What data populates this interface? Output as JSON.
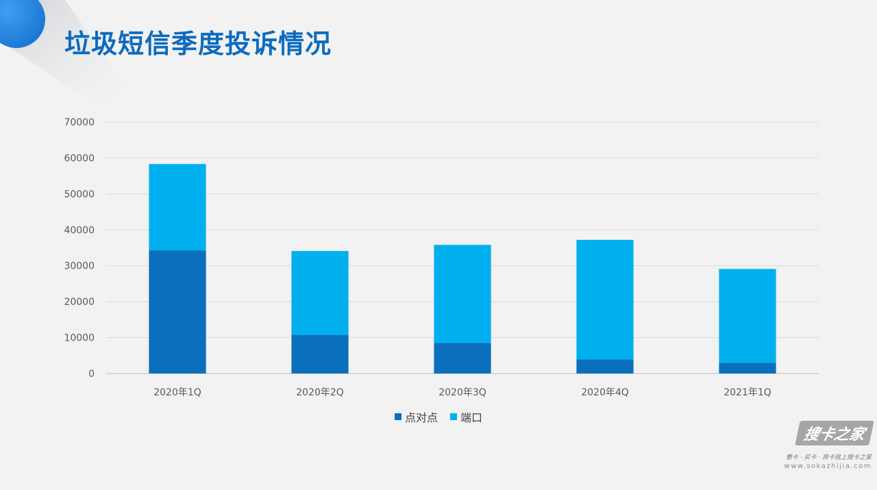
{
  "title": "垃圾短信季度投诉情况",
  "colors": {
    "background": "#f2f2f2",
    "title": "#0d6bbf",
    "point_to_point": "#0a6fbd",
    "port": "#00b0ee",
    "gridline": "#d9d9d9",
    "tick_text": "#595959",
    "deco_circle": "#1f86e0"
  },
  "chart_data": {
    "type": "bar",
    "stacked": true,
    "title": "",
    "xlabel": "",
    "ylabel": "",
    "categories": [
      "2020年1Q",
      "2020年2Q",
      "2020年3Q",
      "2020年4Q",
      "2021年1Q"
    ],
    "series": [
      {
        "name": "点对点",
        "values": [
          34300,
          10800,
          8500,
          3900,
          3000
        ]
      },
      {
        "name": "端口",
        "values": [
          24000,
          23300,
          27300,
          33300,
          26100
        ]
      }
    ],
    "ylim": [
      0,
      70000
    ],
    "yticks": [
      0,
      10000,
      20000,
      30000,
      40000,
      50000,
      60000,
      70000
    ],
    "grid": true,
    "legend_position": "bottom"
  },
  "watermark": {
    "logo": "搜卡之家",
    "tagline": "看卡 · 买卡 · 用卡就上搜卡之家",
    "url": "www.sokazhijia.com"
  }
}
